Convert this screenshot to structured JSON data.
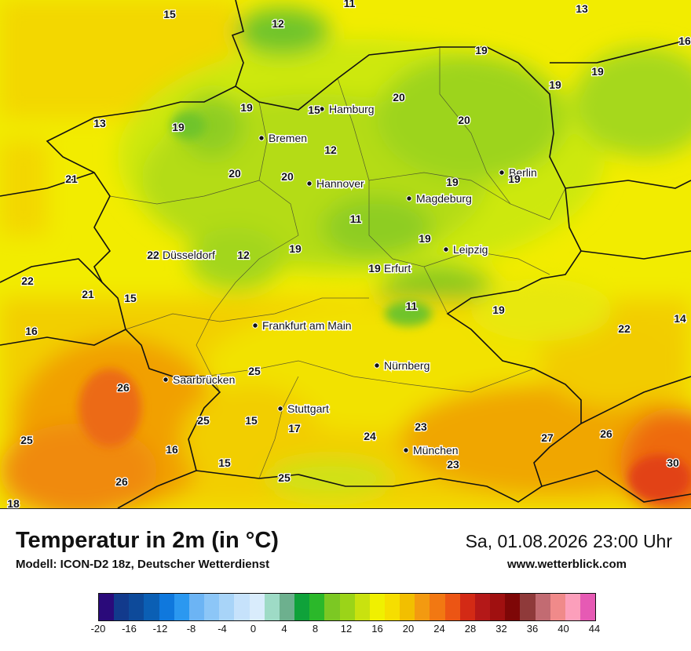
{
  "cities": [
    {
      "name": "Hamburg"
    },
    {
      "name": "Bremen"
    },
    {
      "name": "Hannover"
    },
    {
      "name": "Berlin"
    },
    {
      "name": "Magdeburg"
    },
    {
      "name": "Düsseldorf"
    },
    {
      "name": "Leipzig"
    },
    {
      "name": "Erfurt"
    },
    {
      "name": "Frankfurt am Main"
    },
    {
      "name": "Nürnberg"
    },
    {
      "name": "Saarbrücken"
    },
    {
      "name": "Stuttgart"
    },
    {
      "name": "München"
    }
  ],
  "values": [
    "15",
    "12",
    "13",
    "11",
    "19",
    "16",
    "19",
    "20",
    "13",
    "19",
    "20",
    "19",
    "15",
    "19",
    "20",
    "12",
    "21",
    "20",
    "19",
    "19",
    "11",
    "22",
    "21",
    "12",
    "19",
    "19",
    "22",
    "15",
    "19",
    "11",
    "19",
    "16",
    "14",
    "22",
    "25",
    "26",
    "25",
    "15",
    "17",
    "24",
    "23",
    "27",
    "26",
    "25",
    "16",
    "15",
    "23",
    "30",
    "26",
    "25",
    "18"
  ],
  "title": "Temperatur in 2m (in °C)",
  "model": "Modell: ICON-D2 18z, Deutscher Wetterdienst",
  "datetime": "Sa, 01.08.2026 23:00 Uhr",
  "website": "www.wetterblick.com",
  "scale": {
    "tick_labels": [
      "-20",
      "-16",
      "-12",
      "-8",
      "-4",
      "0",
      "4",
      "8",
      "12",
      "16",
      "20",
      "24",
      "28",
      "32",
      "36",
      "40",
      "44"
    ],
    "colors": [
      "#2a0a7a",
      "#123a8c",
      "#0d4a9a",
      "#0b5fb4",
      "#0f78dd",
      "#2b98f0",
      "#6cb4f4",
      "#8cc6f7",
      "#a8d4f8",
      "#c6e2fb",
      "#d9ecfc",
      "#9edbc6",
      "#6db08e",
      "#0fa23a",
      "#2bb82a",
      "#7cc823",
      "#9bd418",
      "#c9e20f",
      "#f0f000",
      "#f6de00",
      "#f2bf00",
      "#f39a10",
      "#f27812",
      "#ec5514",
      "#d32a15",
      "#b41818",
      "#a01010",
      "#7e0707",
      "#8f3a3a",
      "#c26b72",
      "#f08a8a",
      "#fc9fbb",
      "#e65ab4"
    ]
  }
}
